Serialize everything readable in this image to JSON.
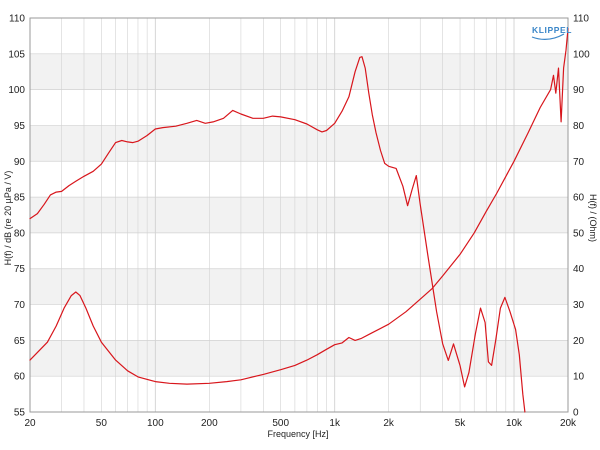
{
  "chart_data": {
    "type": "line",
    "brand": "KLIPPEL",
    "xlabel": "Frequency [Hz]",
    "ylabel_left": "H(f) / dB (re 20 µPa / V)",
    "ylabel_right": "H(f) / (Ohm)",
    "x_scale": "log",
    "xlim": [
      20,
      20000
    ],
    "ylim_left": [
      55,
      110
    ],
    "ylim_right": [
      0,
      110
    ],
    "x_ticks": [
      {
        "value": 20,
        "label": "20"
      },
      {
        "value": 50,
        "label": "50"
      },
      {
        "value": 100,
        "label": "100"
      },
      {
        "value": 200,
        "label": "200"
      },
      {
        "value": 500,
        "label": "500"
      },
      {
        "value": 1000,
        "label": "1k"
      },
      {
        "value": 2000,
        "label": "2k"
      },
      {
        "value": 5000,
        "label": "5k"
      },
      {
        "value": 10000,
        "label": "10k"
      },
      {
        "value": 20000,
        "label": "20k"
      }
    ],
    "y_ticks_left": [
      55,
      60,
      65,
      70,
      75,
      80,
      85,
      90,
      95,
      100,
      105,
      110
    ],
    "y_ticks_right": [
      0,
      10,
      20,
      30,
      40,
      50,
      60,
      70,
      80,
      90,
      100,
      110
    ],
    "grid": true,
    "line_color": "#d8161c",
    "grid_color": "#d2d2d2",
    "band_color": "#f2f2f2",
    "series": [
      {
        "axis": "left",
        "points": [
          [
            20,
            82.0
          ],
          [
            22,
            82.7
          ],
          [
            24,
            84.0
          ],
          [
            26,
            85.3
          ],
          [
            28,
            85.7
          ],
          [
            30,
            85.8
          ],
          [
            33,
            86.6
          ],
          [
            36,
            87.2
          ],
          [
            40,
            87.9
          ],
          [
            45,
            88.6
          ],
          [
            50,
            89.6
          ],
          [
            55,
            91.2
          ],
          [
            60,
            92.6
          ],
          [
            65,
            92.9
          ],
          [
            70,
            92.7
          ],
          [
            75,
            92.6
          ],
          [
            80,
            92.8
          ],
          [
            90,
            93.6
          ],
          [
            100,
            94.5
          ],
          [
            110,
            94.7
          ],
          [
            130,
            94.9
          ],
          [
            150,
            95.3
          ],
          [
            170,
            95.7
          ],
          [
            190,
            95.3
          ],
          [
            210,
            95.5
          ],
          [
            240,
            96.0
          ],
          [
            270,
            97.1
          ],
          [
            300,
            96.6
          ],
          [
            350,
            96.0
          ],
          [
            400,
            96.0
          ],
          [
            450,
            96.3
          ],
          [
            500,
            96.2
          ],
          [
            600,
            95.8
          ],
          [
            700,
            95.2
          ],
          [
            800,
            94.4
          ],
          [
            850,
            94.1
          ],
          [
            900,
            94.3
          ],
          [
            1000,
            95.3
          ],
          [
            1100,
            97.0
          ],
          [
            1200,
            99.0
          ],
          [
            1300,
            102.5
          ],
          [
            1380,
            104.5
          ],
          [
            1420,
            104.6
          ],
          [
            1480,
            103.0
          ],
          [
            1550,
            99.5
          ],
          [
            1620,
            96.5
          ],
          [
            1700,
            94.0
          ],
          [
            1800,
            91.5
          ],
          [
            1900,
            89.7
          ],
          [
            2000,
            89.3
          ],
          [
            2200,
            89.0
          ],
          [
            2400,
            86.5
          ],
          [
            2550,
            83.8
          ],
          [
            2700,
            86.0
          ],
          [
            2850,
            88.0
          ],
          [
            3000,
            84.0
          ],
          [
            3300,
            77.0
          ],
          [
            3700,
            69.0
          ],
          [
            4000,
            64.5
          ],
          [
            4300,
            62.2
          ],
          [
            4600,
            64.5
          ],
          [
            5000,
            61.5
          ],
          [
            5300,
            58.5
          ],
          [
            5600,
            60.5
          ],
          [
            6100,
            66.0
          ],
          [
            6500,
            69.5
          ],
          [
            6900,
            67.5
          ],
          [
            7200,
            62.0
          ],
          [
            7500,
            61.5
          ],
          [
            7900,
            65.0
          ],
          [
            8400,
            69.5
          ],
          [
            8900,
            71.0
          ],
          [
            9500,
            69.0
          ],
          [
            10200,
            66.5
          ],
          [
            10700,
            63.0
          ],
          [
            11200,
            57.5
          ],
          [
            11500,
            55.0
          ]
        ]
      },
      {
        "axis": "right",
        "points": [
          [
            20,
            14.5
          ],
          [
            25,
            19.5
          ],
          [
            28,
            24.0
          ],
          [
            31,
            29.0
          ],
          [
            34,
            32.5
          ],
          [
            36,
            33.5
          ],
          [
            38,
            32.5
          ],
          [
            41,
            29.0
          ],
          [
            45,
            24.0
          ],
          [
            50,
            19.5
          ],
          [
            60,
            14.5
          ],
          [
            70,
            11.5
          ],
          [
            80,
            9.8
          ],
          [
            100,
            8.5
          ],
          [
            120,
            8.0
          ],
          [
            150,
            7.8
          ],
          [
            200,
            8.0
          ],
          [
            250,
            8.5
          ],
          [
            300,
            9.0
          ],
          [
            400,
            10.5
          ],
          [
            500,
            11.8
          ],
          [
            600,
            13.0
          ],
          [
            700,
            14.5
          ],
          [
            800,
            16.0
          ],
          [
            900,
            17.5
          ],
          [
            1000,
            18.8
          ],
          [
            1100,
            19.3
          ],
          [
            1200,
            20.8
          ],
          [
            1300,
            20.0
          ],
          [
            1400,
            20.5
          ],
          [
            1600,
            22.0
          ],
          [
            2000,
            24.5
          ],
          [
            2500,
            28.0
          ],
          [
            3000,
            31.5
          ],
          [
            3500,
            34.5
          ],
          [
            4000,
            38.0
          ],
          [
            5000,
            44.0
          ],
          [
            6000,
            50.0
          ],
          [
            7000,
            56.0
          ],
          [
            8000,
            61.0
          ],
          [
            10000,
            70.0
          ],
          [
            12000,
            78.0
          ],
          [
            14000,
            85.0
          ],
          [
            16000,
            90.0
          ],
          [
            16600,
            94.0
          ],
          [
            17100,
            89.0
          ],
          [
            17700,
            96.0
          ],
          [
            18300,
            81.0
          ],
          [
            18900,
            96.0
          ],
          [
            19500,
            101.0
          ],
          [
            20000,
            107.0
          ]
        ]
      }
    ]
  }
}
